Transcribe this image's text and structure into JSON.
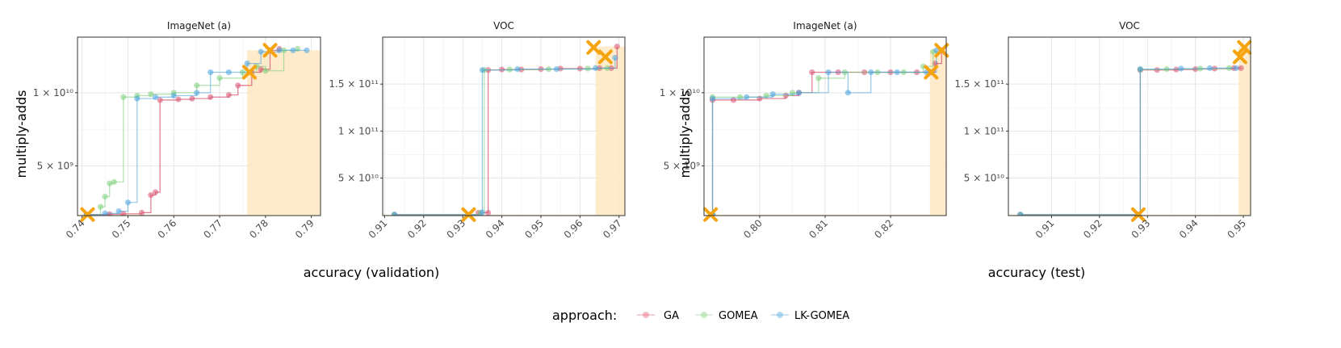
{
  "chart_data": [
    {
      "type": "line",
      "title": "ImageNet (a)",
      "xlabel": "accuracy (validation)",
      "ylabel": "multiply-adds",
      "xlim": [
        0.739,
        0.792
      ],
      "ylim": [
        1600000000.0,
        13800000000.0
      ],
      "xticks": [
        {
          "v": 0.74,
          "label": "0.74"
        },
        {
          "v": 0.75,
          "label": "0.75"
        },
        {
          "v": 0.76,
          "label": "0.76"
        },
        {
          "v": 0.77,
          "label": "0.77"
        },
        {
          "v": 0.78,
          "label": "0.78"
        },
        {
          "v": 0.79,
          "label": "0.79"
        }
      ],
      "yticks": [
        {
          "v": 5000000000.0,
          "label": "5 × 10⁹"
        },
        {
          "v": 10000000000.0,
          "label": "1 × 10¹⁰"
        }
      ],
      "region": {
        "x_start": 0.776,
        "y_top": 12900000000.0
      },
      "stars": [
        {
          "x": 0.7412,
          "y": 1670000000.0
        },
        {
          "x": 0.7765,
          "y": 11400000000.0
        },
        {
          "x": 0.781,
          "y": 12900000000.0
        }
      ],
      "series": [
        {
          "name": "GA",
          "points": [
            [
              0.741,
              1670000000.0
            ],
            [
              0.746,
              1700000000.0
            ],
            [
              0.749,
              1720000000.0
            ],
            [
              0.753,
              1800000000.0
            ],
            [
              0.755,
              3000000000.0
            ],
            [
              0.756,
              3200000000.0
            ],
            [
              0.757,
              9500000000.0
            ],
            [
              0.761,
              9550000000.0
            ],
            [
              0.764,
              9600000000.0
            ],
            [
              0.768,
              9700000000.0
            ],
            [
              0.772,
              9850000000.0
            ],
            [
              0.774,
              10500000000.0
            ],
            [
              0.777,
              11400000000.0
            ],
            [
              0.779,
              11600000000.0
            ],
            [
              0.781,
              12900000000.0
            ],
            [
              0.783,
              13000000000.0
            ]
          ]
        },
        {
          "name": "GOMEA",
          "points": [
            [
              0.741,
              1670000000.0
            ],
            [
              0.744,
              2200000000.0
            ],
            [
              0.745,
              2900000000.0
            ],
            [
              0.746,
              3800000000.0
            ],
            [
              0.747,
              3900000000.0
            ],
            [
              0.749,
              9700000000.0
            ],
            [
              0.752,
              9800000000.0
            ],
            [
              0.755,
              9900000000.0
            ],
            [
              0.76,
              10000000000.0
            ],
            [
              0.765,
              10500000000.0
            ],
            [
              0.77,
              11000000000.0
            ],
            [
              0.775,
              11400000000.0
            ],
            [
              0.778,
              11800000000.0
            ],
            [
              0.78,
              11500000000.0
            ],
            [
              0.784,
              12900000000.0
            ],
            [
              0.787,
              13000000000.0
            ]
          ]
        },
        {
          "name": "LK-GOMEA",
          "points": [
            [
              0.741,
              1670000000.0
            ],
            [
              0.745,
              1750000000.0
            ],
            [
              0.748,
              1900000000.0
            ],
            [
              0.75,
              2500000000.0
            ],
            [
              0.752,
              9600000000.0
            ],
            [
              0.756,
              9700000000.0
            ],
            [
              0.76,
              9800000000.0
            ],
            [
              0.765,
              10000000000.0
            ],
            [
              0.768,
              11400000000.0
            ],
            [
              0.772,
              11400000000.0
            ],
            [
              0.776,
              12000000000.0
            ],
            [
              0.779,
              12800000000.0
            ],
            [
              0.783,
              12900000000.0
            ],
            [
              0.786,
              12900000000.0
            ],
            [
              0.789,
              12900000000.0
            ]
          ]
        }
      ]
    },
    {
      "type": "line",
      "title": "VOC",
      "xlabel": "accuracy (validation)",
      "ylabel": "",
      "xlim": [
        0.9095,
        0.9715
      ],
      "ylim": [
        10000000000.0,
        200000000000.0
      ],
      "xticks": [
        {
          "v": 0.91,
          "label": "0.91"
        },
        {
          "v": 0.92,
          "label": "0.92"
        },
        {
          "v": 0.93,
          "label": "0.93"
        },
        {
          "v": 0.94,
          "label": "0.94"
        },
        {
          "v": 0.95,
          "label": "0.95"
        },
        {
          "v": 0.96,
          "label": "0.96"
        },
        {
          "v": 0.97,
          "label": "0.97"
        }
      ],
      "yticks": [
        {
          "v": 50000000000.0,
          "label": "5 × 10¹⁰"
        },
        {
          "v": 100000000000.0,
          "label": "1 × 10¹¹"
        },
        {
          "v": 150000000000.0,
          "label": "1.5 × 10¹¹"
        }
      ],
      "region": {
        "x_start": 0.964,
        "y_top": 190000000000.0
      },
      "stars": [
        {
          "x": 0.9315,
          "y": 11000000000.0
        },
        {
          "x": 0.9635,
          "y": 189000000000.0
        },
        {
          "x": 0.9665,
          "y": 179000000000.0
        }
      ],
      "series": [
        {
          "name": "GA",
          "points": [
            [
              0.9125,
              11000000000.0
            ],
            [
              0.9315,
              11000000000.0
            ],
            [
              0.934,
              13000000000.0
            ],
            [
              0.9365,
              13000000000.0
            ],
            [
              0.9365,
              165000000000.0
            ],
            [
              0.94,
              165500000000.0
            ],
            [
              0.945,
              165500000000.0
            ],
            [
              0.95,
              166000000000.0
            ],
            [
              0.955,
              166500000000.0
            ],
            [
              0.96,
              166500000000.0
            ],
            [
              0.965,
              167000000000.0
            ],
            [
              0.968,
              167000000000.0
            ],
            [
              0.9695,
              190000000000.0
            ]
          ]
        },
        {
          "name": "GOMEA",
          "points": [
            [
              0.9125,
              11000000000.0
            ],
            [
              0.9345,
              13000000000.0
            ],
            [
              0.9355,
              165000000000.0
            ],
            [
              0.942,
              165500000000.0
            ],
            [
              0.952,
              166000000000.0
            ],
            [
              0.962,
              166500000000.0
            ],
            [
              0.967,
              167000000000.0
            ]
          ]
        },
        {
          "name": "LK-GOMEA",
          "points": [
            [
              0.9125,
              11000000000.0
            ],
            [
              0.935,
              13500000000.0
            ],
            [
              0.935,
              165000000000.0
            ],
            [
              0.944,
              166000000000.0
            ],
            [
              0.954,
              166000000000.0
            ],
            [
              0.964,
              167000000000.0
            ],
            [
              0.969,
              178000000000.0
            ]
          ]
        }
      ]
    },
    {
      "type": "line",
      "title": "ImageNet (a)",
      "xlabel": "accuracy (test)",
      "ylabel": "multiply-adds",
      "xlim": [
        0.7915,
        0.8285
      ],
      "ylim": [
        1600000000.0,
        13800000000.0
      ],
      "xticks": [
        {
          "v": 0.8,
          "label": "0.80"
        },
        {
          "v": 0.81,
          "label": "0.81"
        },
        {
          "v": 0.82,
          "label": "0.82"
        }
      ],
      "yticks": [
        {
          "v": 5000000000.0,
          "label": "5 × 10⁹"
        },
        {
          "v": 10000000000.0,
          "label": "1 × 10¹⁰"
        }
      ],
      "region": {
        "x_start": 0.826,
        "y_top": 12900000000.0
      },
      "stars": [
        {
          "x": 0.7925,
          "y": 1670000000.0
        },
        {
          "x": 0.8262,
          "y": 11400000000.0
        },
        {
          "x": 0.8278,
          "y": 12900000000.0
        }
      ],
      "series": [
        {
          "name": "GA",
          "points": [
            [
              0.7928,
              1670000000.0
            ],
            [
              0.7928,
              9500000000.0
            ],
            [
              0.796,
              9500000000.0
            ],
            [
              0.8,
              9600000000.0
            ],
            [
              0.804,
              9800000000.0
            ],
            [
              0.806,
              10000000000.0
            ],
            [
              0.808,
              11400000000.0
            ],
            [
              0.812,
              11400000000.0
            ],
            [
              0.816,
              11400000000.0
            ],
            [
              0.82,
              11400000000.0
            ],
            [
              0.824,
              11400000000.0
            ],
            [
              0.8262,
              11400000000.0
            ],
            [
              0.8268,
              12000000000.0
            ],
            [
              0.8278,
              12900000000.0
            ]
          ]
        },
        {
          "name": "GOMEA",
          "points": [
            [
              0.7928,
              1670000000.0
            ],
            [
              0.7928,
              9700000000.0
            ],
            [
              0.797,
              9700000000.0
            ],
            [
              0.801,
              9800000000.0
            ],
            [
              0.805,
              10000000000.0
            ],
            [
              0.809,
              11000000000.0
            ],
            [
              0.813,
              11400000000.0
            ],
            [
              0.818,
              11400000000.0
            ],
            [
              0.822,
              11400000000.0
            ],
            [
              0.825,
              11800000000.0
            ],
            [
              0.8265,
              12800000000.0
            ]
          ]
        },
        {
          "name": "LK-GOMEA",
          "points": [
            [
              0.7928,
              1670000000.0
            ],
            [
              0.7928,
              9600000000.0
            ],
            [
              0.798,
              9700000000.0
            ],
            [
              0.802,
              9900000000.0
            ],
            [
              0.806,
              10000000000.0
            ],
            [
              0.8105,
              11400000000.0
            ],
            [
              0.8135,
              10000000000.0
            ],
            [
              0.817,
              11400000000.0
            ],
            [
              0.821,
              11400000000.0
            ],
            [
              0.8255,
              11400000000.0
            ],
            [
              0.827,
              12900000000.0
            ]
          ]
        }
      ]
    },
    {
      "type": "line",
      "title": "VOC",
      "xlabel": "accuracy (test)",
      "ylabel": "",
      "xlim": [
        0.901,
        0.9515
      ],
      "ylim": [
        10000000000.0,
        200000000000.0
      ],
      "xticks": [
        {
          "v": 0.91,
          "label": "0.91"
        },
        {
          "v": 0.92,
          "label": "0.92"
        },
        {
          "v": 0.93,
          "label": "0.93"
        },
        {
          "v": 0.94,
          "label": "0.94"
        },
        {
          "v": 0.95,
          "label": "0.95"
        }
      ],
      "yticks": [
        {
          "v": 50000000000.0,
          "label": "5 × 10¹⁰"
        },
        {
          "v": 100000000000.0,
          "label": "1 × 10¹¹"
        },
        {
          "v": 150000000000.0,
          "label": "1.5 × 10¹¹"
        }
      ],
      "region": {
        "x_start": 0.949,
        "y_top": 190000000000.0
      },
      "stars": [
        {
          "x": 0.9281,
          "y": 11000000000.0
        },
        {
          "x": 0.9493,
          "y": 179000000000.0
        },
        {
          "x": 0.9502,
          "y": 189000000000.0
        }
      ],
      "series": [
        {
          "name": "GA",
          "points": [
            [
              0.9035,
              11000000000.0
            ],
            [
              0.9281,
              11000000000.0
            ],
            [
              0.9285,
              165000000000.0
            ],
            [
              0.932,
              165000000000.0
            ],
            [
              0.936,
              165500000000.0
            ],
            [
              0.94,
              166000000000.0
            ],
            [
              0.944,
              166500000000.0
            ],
            [
              0.948,
              167000000000.0
            ],
            [
              0.9495,
              167000000000.0
            ]
          ]
        },
        {
          "name": "GOMEA",
          "points": [
            [
              0.9035,
              11000000000.0
            ],
            [
              0.9281,
              11000000000.0
            ],
            [
              0.9285,
              165500000000.0
            ],
            [
              0.934,
              166000000000.0
            ],
            [
              0.941,
              166500000000.0
            ],
            [
              0.947,
              167000000000.0
            ]
          ]
        },
        {
          "name": "LK-GOMEA",
          "points": [
            [
              0.9035,
              11000000000.0
            ],
            [
              0.9281,
              11000000000.0
            ],
            [
              0.9285,
              166000000000.0
            ],
            [
              0.937,
              166500000000.0
            ],
            [
              0.943,
              167000000000.0
            ],
            [
              0.9485,
              167000000000.0
            ]
          ]
        }
      ]
    }
  ],
  "axis_titles": {
    "y_left": "multiply-adds",
    "y_right": "multiply-adds",
    "x_left": "accuracy (validation)",
    "x_right": "accuracy (test)"
  },
  "legend": {
    "title": "approach:",
    "items": [
      {
        "label": "GA",
        "color": "#e8657f"
      },
      {
        "label": "GOMEA",
        "color": "#8fd68a"
      },
      {
        "label": "LK-GOMEA",
        "color": "#5aaee3"
      }
    ]
  },
  "colors": {
    "GA": "#d6506e",
    "GOMEA": "#7ccf7a",
    "LK-GOMEA": "#4aa3df",
    "star": "#f5a40f",
    "region": "#fde8c2"
  }
}
